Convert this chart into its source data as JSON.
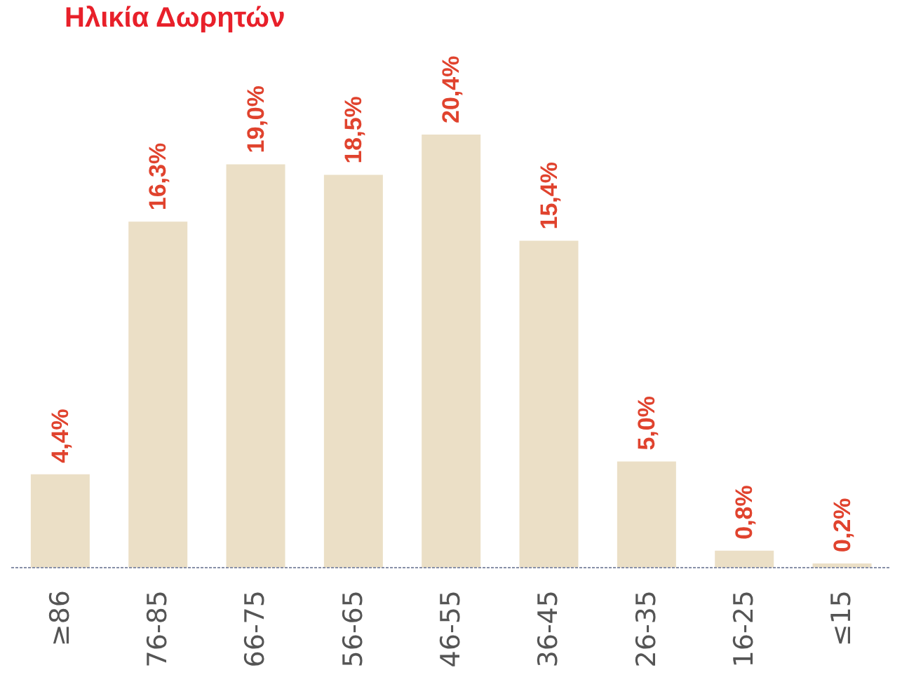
{
  "chart_data": {
    "type": "bar",
    "title": "Ηλικία Δωρητών",
    "categories": [
      "≥86",
      "76-85",
      "66-75",
      "56-65",
      "46-55",
      "36-45",
      "26-35",
      "16-25",
      "≤15"
    ],
    "values": [
      4.4,
      16.3,
      19.0,
      18.5,
      20.4,
      15.4,
      5.0,
      0.8,
      0.2
    ],
    "value_labels": [
      "4,4%",
      "16,3%",
      "19,0%",
      "18,5%",
      "20,4%",
      "15,4%",
      "5,0%",
      "0,8%",
      "0,2%"
    ],
    "color": "#ebdfc6"
  }
}
